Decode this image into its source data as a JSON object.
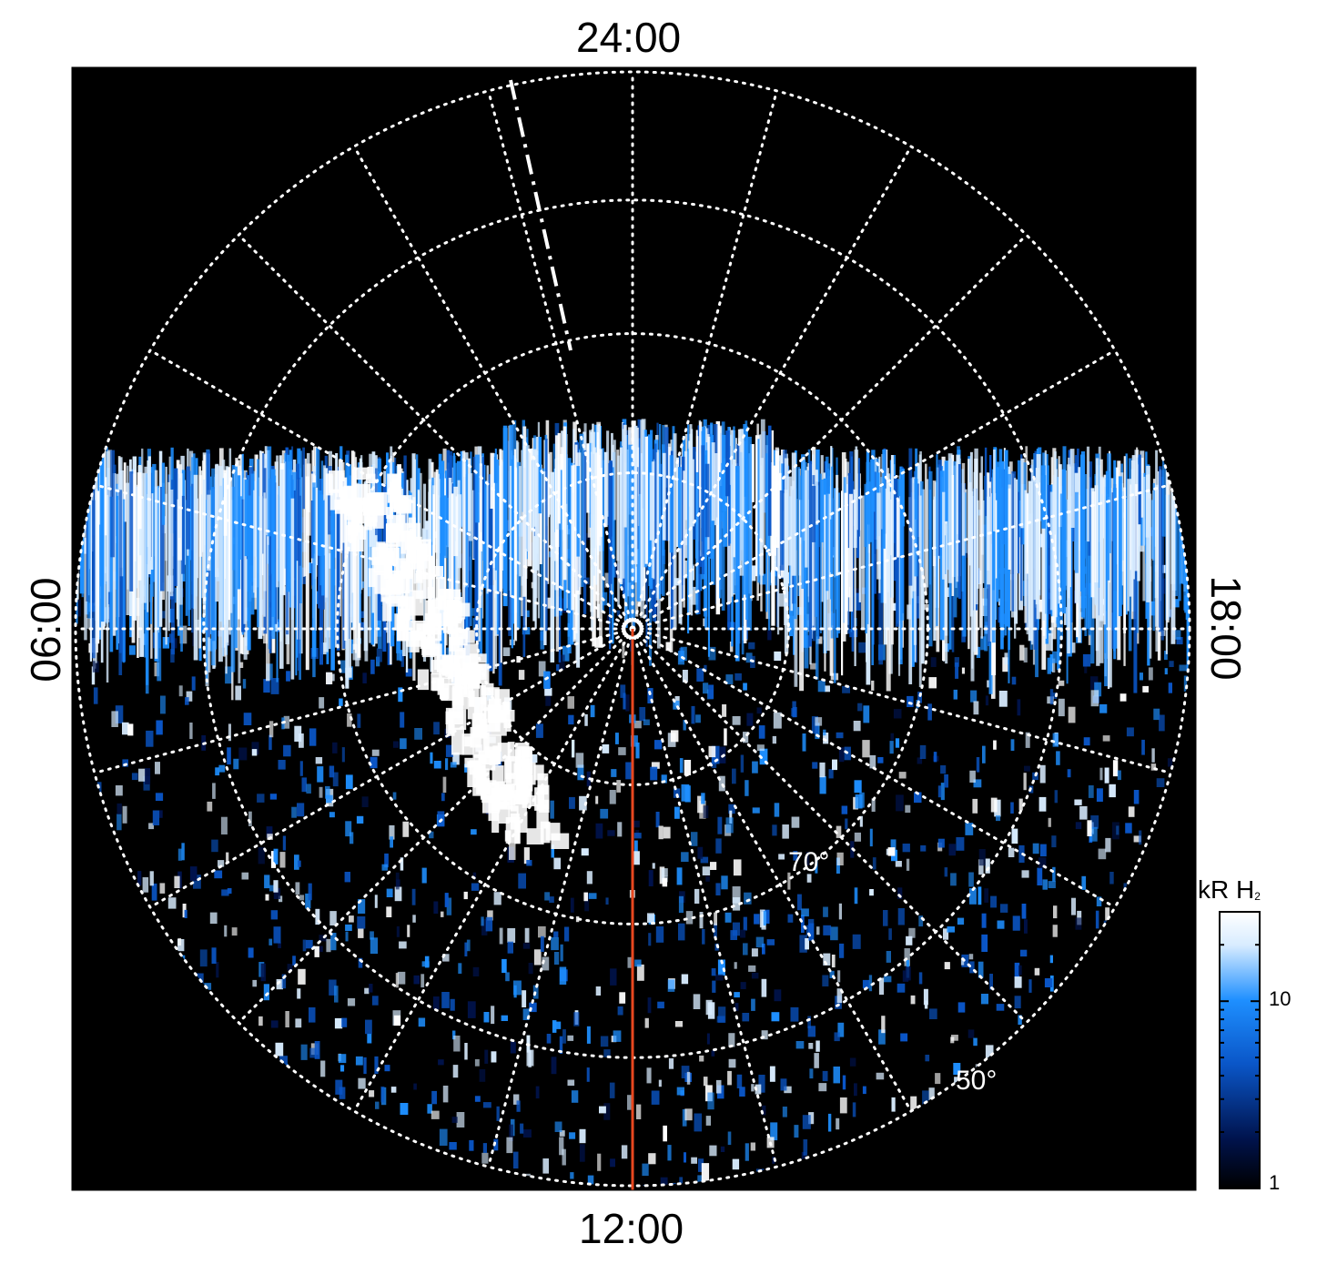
{
  "chart_data": {
    "type": "heatmap",
    "title": "",
    "projection": "polar (local time / latitude)",
    "local_time_labels": {
      "top": "24:00",
      "bottom": "12:00",
      "left": "06:00",
      "right": "18:00"
    },
    "latitude_labels": [
      "70°",
      "50°"
    ],
    "colorbar": {
      "title": "kR H",
      "title_subscript": "2",
      "scale": "log",
      "range": [
        1,
        30
      ],
      "tick_labels": [
        "10",
        "1"
      ],
      "colors": [
        "#000000",
        "#00134d",
        "#0a56c8",
        "#1e8fff",
        "#d8ecff",
        "#ffffff"
      ]
    },
    "overlays": {
      "grid": "white dotted",
      "dashed_meridian": "white dash-dot",
      "noon_meridian_color": "#e8471f"
    },
    "background": "#000000"
  }
}
